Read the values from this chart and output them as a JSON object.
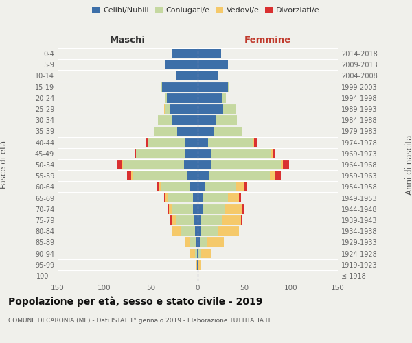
{
  "title": "Popolazione per età, sesso e stato civile - 2019",
  "subtitle": "COMUNE DI CARONIA (ME) - Dati ISTAT 1° gennaio 2019 - Elaborazione TUTTITALIA.IT",
  "age_groups": [
    "100+",
    "95-99",
    "90-94",
    "85-89",
    "80-84",
    "75-79",
    "70-74",
    "65-69",
    "60-64",
    "55-59",
    "50-54",
    "45-49",
    "40-44",
    "35-39",
    "30-34",
    "25-29",
    "20-24",
    "15-19",
    "10-14",
    "5-9",
    "0-4"
  ],
  "birth_years": [
    "≤ 1918",
    "1919-1923",
    "1924-1928",
    "1929-1933",
    "1934-1938",
    "1939-1943",
    "1944-1948",
    "1949-1953",
    "1954-1958",
    "1959-1963",
    "1964-1968",
    "1969-1973",
    "1974-1978",
    "1979-1983",
    "1984-1988",
    "1989-1993",
    "1994-1998",
    "1999-2003",
    "2004-2008",
    "2009-2013",
    "2014-2018"
  ],
  "left_header": "Maschi",
  "right_header": "Femmine",
  "ylabel": "Fasce di età",
  "ylabel2": "Anni di nascita",
  "colors": {
    "celibi": "#3d6fa8",
    "coniugati": "#c5d8a0",
    "vedovi": "#f5c96a",
    "divorziati": "#d93030"
  },
  "legend_labels": [
    "Celibi/Nubili",
    "Coniugati/e",
    "Vedovi/e",
    "Divorziati/e"
  ],
  "xlim": 150,
  "background_color": "#f0f0eb",
  "males": {
    "celibi": [
      0,
      1,
      1,
      2,
      3,
      4,
      5,
      5,
      8,
      12,
      15,
      14,
      14,
      22,
      28,
      30,
      33,
      38,
      23,
      35,
      28
    ],
    "coniugati": [
      0,
      0,
      2,
      6,
      15,
      19,
      22,
      27,
      32,
      58,
      65,
      52,
      40,
      24,
      15,
      5,
      2,
      1,
      0,
      0,
      0
    ],
    "vedovi": [
      0,
      1,
      5,
      5,
      10,
      5,
      4,
      3,
      2,
      1,
      1,
      0,
      0,
      0,
      0,
      1,
      0,
      0,
      0,
      0,
      0
    ],
    "divorziati": [
      0,
      0,
      0,
      0,
      0,
      2,
      1,
      1,
      2,
      5,
      6,
      1,
      2,
      0,
      0,
      0,
      0,
      0,
      0,
      0,
      0
    ]
  },
  "females": {
    "nubili": [
      0,
      1,
      1,
      2,
      4,
      4,
      5,
      5,
      7,
      12,
      14,
      14,
      11,
      17,
      20,
      27,
      26,
      32,
      22,
      32,
      25
    ],
    "coniugate": [
      0,
      0,
      2,
      8,
      18,
      22,
      24,
      27,
      34,
      65,
      75,
      65,
      48,
      30,
      22,
      14,
      4,
      2,
      0,
      0,
      0
    ],
    "vedove": [
      1,
      3,
      12,
      18,
      22,
      20,
      18,
      12,
      8,
      5,
      2,
      2,
      1,
      0,
      0,
      0,
      0,
      0,
      0,
      0,
      0
    ],
    "divorziate": [
      0,
      0,
      0,
      0,
      0,
      1,
      2,
      2,
      4,
      7,
      7,
      2,
      4,
      1,
      0,
      0,
      0,
      0,
      0,
      0,
      0
    ]
  }
}
